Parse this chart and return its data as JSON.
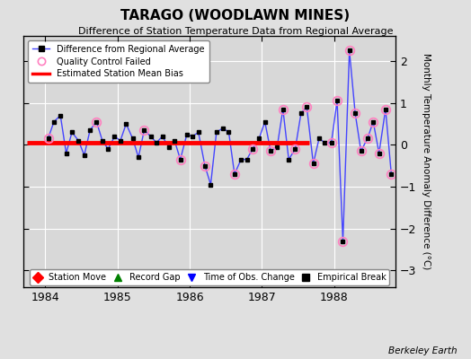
{
  "title": "TARAGO (WOODLAWN MINES)",
  "subtitle": "Difference of Station Temperature Data from Regional Average",
  "ylabel": "Monthly Temperature Anomaly Difference (°C)",
  "credit": "Berkeley Earth",
  "xlim": [
    1983.7,
    1988.85
  ],
  "ylim": [
    -3.4,
    2.6
  ],
  "yticks": [
    -3,
    -2,
    -1,
    0,
    1,
    2
  ],
  "xticks": [
    1984,
    1985,
    1986,
    1987,
    1988
  ],
  "background_color": "#e0e0e0",
  "plot_bg_color": "#d8d8d8",
  "grid_color": "#ffffff",
  "bias_line_y": 0.05,
  "bias_line_x_start": 1983.75,
  "bias_line_x_end": 1987.65,
  "data_x": [
    1984.04,
    1984.12,
    1984.21,
    1984.29,
    1984.37,
    1984.46,
    1984.54,
    1984.62,
    1984.71,
    1984.79,
    1984.87,
    1984.96,
    1985.04,
    1985.12,
    1985.21,
    1985.29,
    1985.37,
    1985.46,
    1985.54,
    1985.62,
    1985.71,
    1985.79,
    1985.87,
    1985.96,
    1986.04,
    1986.12,
    1986.21,
    1986.29,
    1986.37,
    1986.46,
    1986.54,
    1986.62,
    1986.71,
    1986.79,
    1986.87,
    1986.96,
    1987.04,
    1987.12,
    1987.21,
    1987.29,
    1987.37,
    1987.46,
    1987.54,
    1987.62,
    1987.71,
    1987.79,
    1987.87,
    1987.96,
    1988.04,
    1988.12,
    1988.21,
    1988.29,
    1988.37,
    1988.46,
    1988.54,
    1988.62,
    1988.71,
    1988.79
  ],
  "data_y": [
    0.15,
    0.55,
    0.7,
    -0.2,
    0.3,
    0.1,
    -0.25,
    0.35,
    0.55,
    0.1,
    -0.1,
    0.2,
    0.1,
    0.5,
    0.15,
    -0.3,
    0.35,
    0.2,
    0.05,
    0.2,
    -0.05,
    0.1,
    -0.35,
    0.25,
    0.2,
    0.3,
    -0.5,
    -0.95,
    0.3,
    0.4,
    0.3,
    -0.7,
    -0.35,
    -0.35,
    -0.1,
    0.15,
    0.55,
    -0.15,
    -0.05,
    0.85,
    -0.35,
    -0.1,
    0.75,
    0.9,
    -0.45,
    0.15,
    0.05,
    0.05,
    1.05,
    -2.3,
    2.25,
    0.75,
    -0.15,
    0.15,
    0.55,
    -0.2,
    0.85,
    -0.7
  ],
  "qc_fail_indices": [
    0,
    8,
    16,
    22,
    26,
    31,
    34,
    37,
    39,
    41,
    43,
    44,
    47,
    48,
    49,
    50,
    51,
    52,
    53,
    54,
    55,
    56,
    57
  ],
  "line_color": "#4444ff",
  "marker_color": "#000000",
  "qc_color": "#ff80c0",
  "bias_color": "#ff0000"
}
